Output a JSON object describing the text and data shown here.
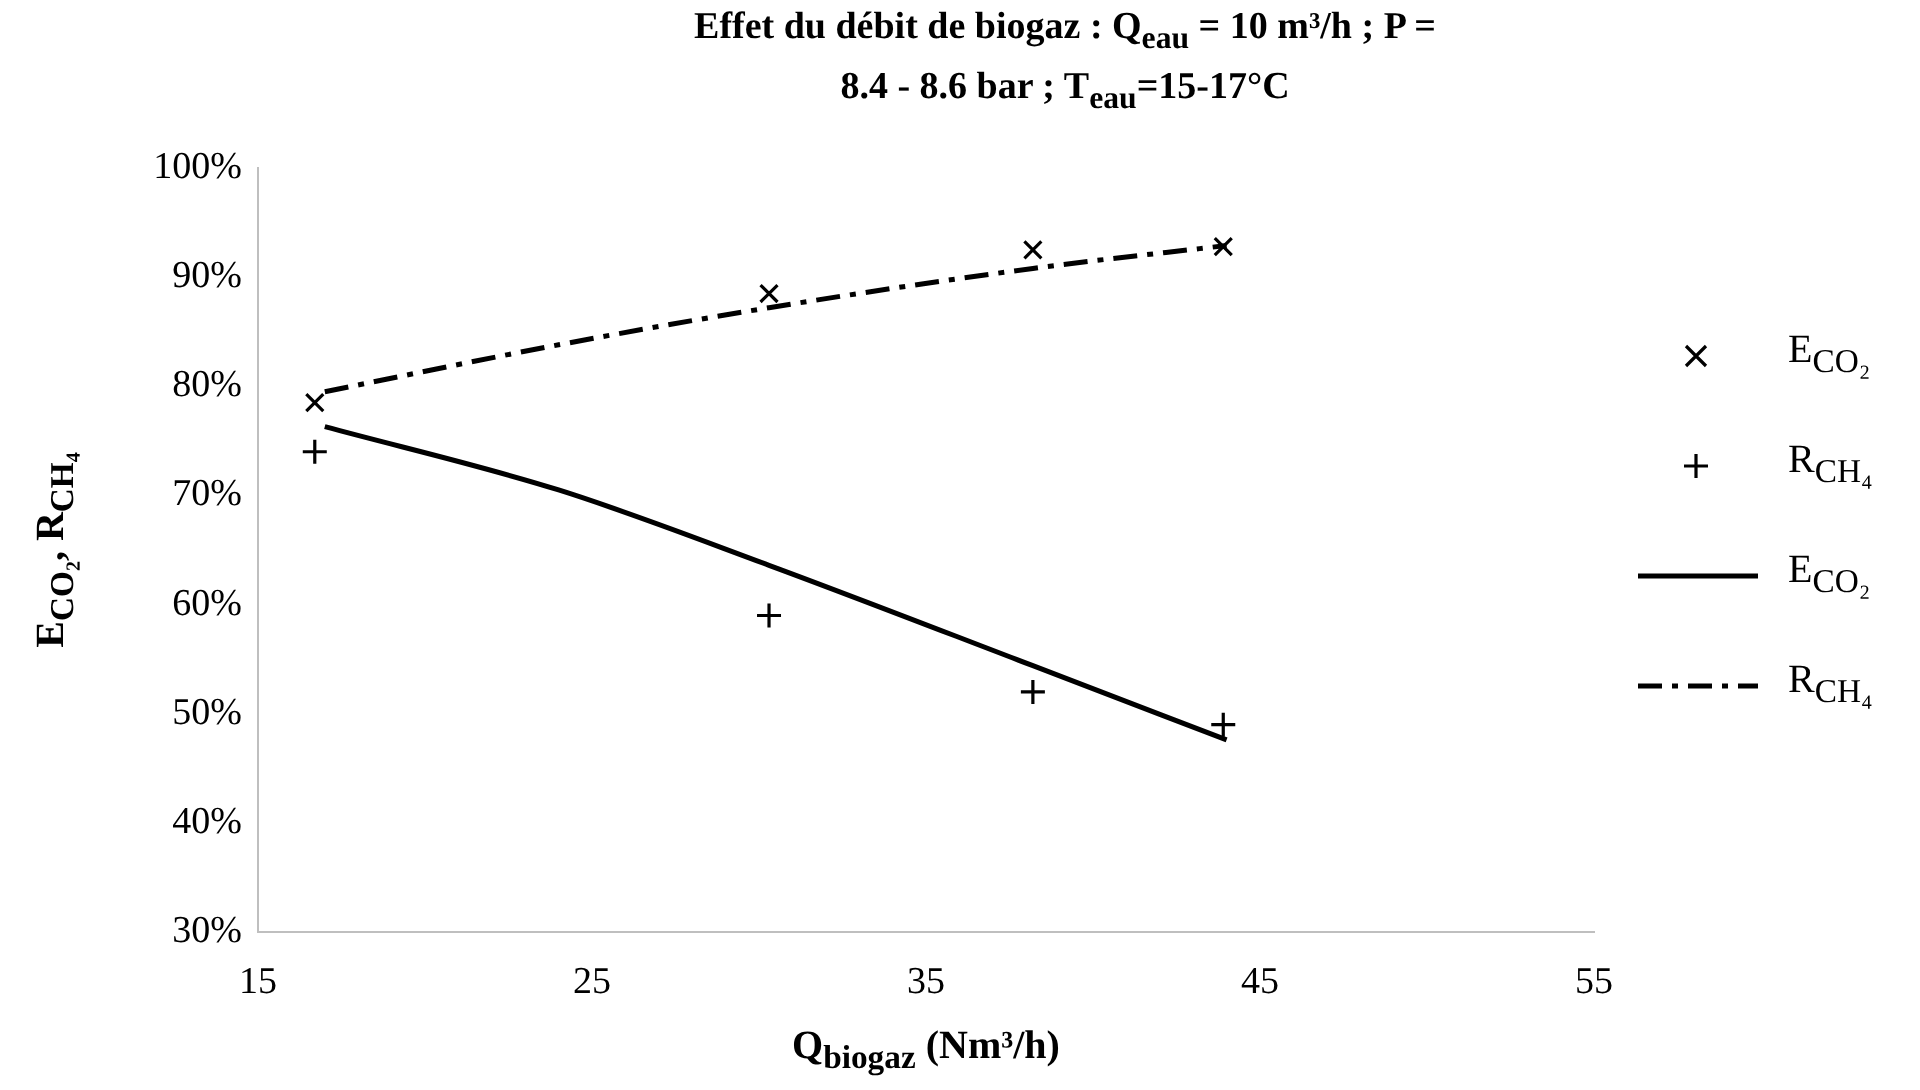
{
  "chart_data": {
    "type": "scatter",
    "title": "Effet du débit de biogaz : Q$_{eau}$ = 10 m³/h ; P = 8.4 - 8.6 bar ; T$_{eau}$=15-17°C",
    "xlabel": "Q$_{biogaz}$ (Nm³/h)",
    "ylabel": "E$_{CO₂}$, R$_{CH₄}$",
    "xlim": [
      15,
      55
    ],
    "xticks": [
      15,
      25,
      35,
      45,
      55
    ],
    "ylim": [
      30,
      100
    ],
    "yticks": [
      {
        "value": 30,
        "label": "30%"
      },
      {
        "value": 40,
        "label": "40%"
      },
      {
        "value": 50,
        "label": "50%"
      },
      {
        "value": 60,
        "label": "60%"
      },
      {
        "value": 70,
        "label": "70%"
      },
      {
        "value": 80,
        "label": "80%"
      },
      {
        "value": 90,
        "label": "90%"
      },
      {
        "value": 100,
        "label": "100%"
      }
    ],
    "grid": false,
    "legend": "right",
    "series": [
      {
        "name": "E$_{CO₂}$",
        "marker": "cross",
        "color": "#000000",
        "x": [
          16.7,
          30.3,
          38.2,
          43.9
        ],
        "values": [
          78.5,
          88.5,
          92.5,
          92.8
        ]
      },
      {
        "name": "R$_{CH₄}$",
        "marker": "cross",
        "color": "#000000",
        "x": [
          16.7,
          30.3,
          38.2,
          43.9
        ],
        "values": [
          74,
          59,
          52,
          49
        ]
      },
      {
        "name": "E$_{CO₂}$",
        "type": "line",
        "marker": "none",
        "line_style": "solid",
        "color": "#000000",
        "x": [
          17,
          24,
          30.3,
          38.2,
          44
        ],
        "values": [
          76.3,
          70.5,
          63.6,
          54.4,
          47.6
        ]
      },
      {
        "name": "R$_{CH₄}$",
        "type": "line",
        "marker": "none",
        "line_style": "dashed",
        "color": "#000000",
        "x": [
          17,
          24,
          30.3,
          38.2,
          44
        ],
        "values": [
          79.5,
          83.8,
          87.2,
          90.8,
          92.9
        ]
      }
    ]
  }
}
